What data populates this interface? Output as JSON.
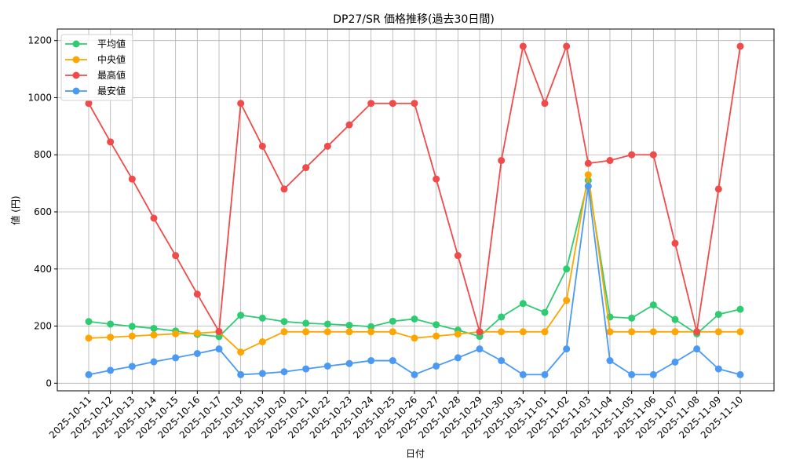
{
  "chart_data": {
    "type": "line",
    "title": "DP27/SR 価格推移(過去30日間)",
    "xlabel": "日付",
    "ylabel": "値 (円)",
    "ylim": [
      -30,
      1240
    ],
    "yticks": [
      0,
      200,
      400,
      600,
      800,
      1000,
      1200
    ],
    "grid": true,
    "legend_position": "upper left",
    "categories": [
      "2025-10-11",
      "2025-10-12",
      "2025-10-13",
      "2025-10-14",
      "2025-10-15",
      "2025-10-16",
      "2025-10-17",
      "2025-10-18",
      "2025-10-19",
      "2025-10-20",
      "2025-10-21",
      "2025-10-22",
      "2025-10-23",
      "2025-10-24",
      "2025-10-25",
      "2025-10-26",
      "2025-10-27",
      "2025-10-28",
      "2025-10-29",
      "2025-10-30",
      "2025-10-31",
      "2025-11-01",
      "2025-11-02",
      "2025-11-03",
      "2025-11-04",
      "2025-11-05",
      "2025-11-06",
      "2025-11-07",
      "2025-11-08",
      "2025-11-09",
      "2025-11-10"
    ],
    "series": [
      {
        "name": "平均値",
        "color": "#2ecc71",
        "values": [
          216,
          207,
          199,
          192,
          183,
          171,
          163,
          238,
          228,
          216,
          210,
          207,
          203,
          198,
          217,
          225,
          205,
          186,
          164,
          232,
          279,
          248,
          400,
          710,
          232,
          228,
          274,
          223,
          173,
          241,
          259
        ]
      },
      {
        "name": "中央値",
        "color": "#ffa500",
        "values": [
          158,
          161,
          165,
          169,
          173,
          175,
          180,
          109,
          145,
          180,
          180,
          180,
          180,
          180,
          180,
          158,
          165,
          172,
          180,
          180,
          180,
          180,
          290,
          730,
          180,
          180,
          180,
          180,
          180,
          180,
          180
        ]
      },
      {
        "name": "最高値",
        "color": "#f04a4a",
        "values": [
          980,
          845,
          715,
          578,
          447,
          312,
          181,
          980,
          830,
          680,
          755,
          830,
          905,
          980,
          980,
          980,
          715,
          447,
          180,
          780,
          1180,
          980,
          1180,
          770,
          780,
          800,
          800,
          490,
          180,
          680,
          1180
        ]
      },
      {
        "name": "最安値",
        "color": "#4a9af5",
        "values": [
          30,
          45,
          59,
          75,
          89,
          104,
          120,
          30,
          34,
          40,
          50,
          60,
          69,
          79,
          79,
          30,
          60,
          89,
          120,
          79,
          30,
          30,
          120,
          690,
          79,
          30,
          30,
          74,
          120,
          50,
          30
        ]
      }
    ]
  }
}
